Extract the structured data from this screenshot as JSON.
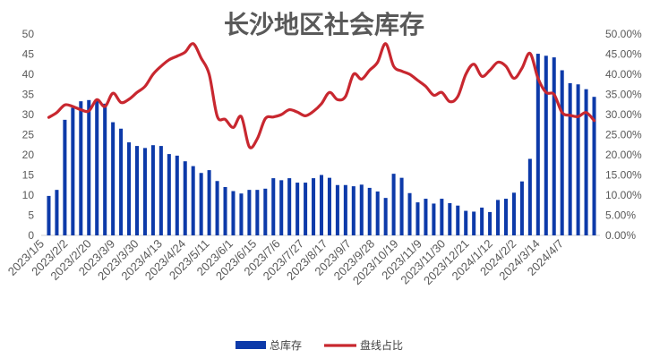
{
  "chart_data": {
    "type": "bar+line",
    "title": "长沙地区社会库存",
    "left_axis": {
      "min": 0,
      "max": 50,
      "step": 5
    },
    "right_axis": {
      "min": 0,
      "max": 50,
      "step": 5,
      "format": "percent-2dp"
    },
    "x_tick_labels": [
      "2023/1/5",
      "2023/2/2",
      "2023/2/20",
      "2023/3/9",
      "2023/3/30",
      "2023/4/13",
      "2023/4/24",
      "2023/5/11",
      "2023/6/1",
      "2023/6/15",
      "2023/7/6",
      "2023/7/27",
      "2023/8/17",
      "2023/9/7",
      "2023/9/28",
      "2023/10/19",
      "2023/11/9",
      "2023/11/30",
      "2023/12/21",
      "2024/1/12",
      "2024/2/2",
      "2024/3/14",
      "2024/4/7"
    ],
    "series": [
      {
        "name": "总库存",
        "type": "bar",
        "color": "#0d3aa9",
        "values": [
          9.8,
          11.3,
          28.7,
          31.7,
          33.3,
          33.6,
          33.8,
          32.7,
          28.1,
          26.5,
          23.1,
          22.2,
          21.7,
          22.4,
          22.2,
          20.2,
          19.8,
          18.4,
          17.2,
          15.5,
          16.2,
          13.5,
          12.0,
          11.0,
          10.4,
          11.3,
          11.3,
          11.6,
          14.2,
          13.7,
          14.2,
          13.1,
          13.1,
          14.2,
          15.0,
          14.3,
          12.5,
          12.5,
          12.2,
          12.6,
          11.8,
          10.9,
          9.3,
          15.3,
          14.3,
          10.5,
          8.2,
          9.1,
          7.9,
          9.1,
          8.0,
          7.4,
          6.1,
          5.9,
          6.9,
          5.8,
          8.8,
          9.1,
          10.6,
          13.4,
          19.0,
          45.1,
          44.6,
          44.2,
          41.0,
          37.8,
          37.5,
          36.3,
          34.4
        ]
      },
      {
        "name": "盘线占比",
        "type": "line",
        "color": "#c8272f",
        "values": [
          29.3,
          30.5,
          32.4,
          32.0,
          31.2,
          30.9,
          33.7,
          32.0,
          35.3,
          33.0,
          33.8,
          35.5,
          37.0,
          40.0,
          42.0,
          43.6,
          44.5,
          45.5,
          47.6,
          44.0,
          40.0,
          29.6,
          28.8,
          26.8,
          29.5,
          22.0,
          24.0,
          29.0,
          29.4,
          30.0,
          31.2,
          30.6,
          29.7,
          30.8,
          32.7,
          35.5,
          33.7,
          34.5,
          40.0,
          38.8,
          41.0,
          43.0,
          47.6,
          42.0,
          40.8,
          40.0,
          38.5,
          37.0,
          34.8,
          35.5,
          33.2,
          34.5,
          40.0,
          42.5,
          39.5,
          41.0,
          43.0,
          42.0,
          39.0,
          41.5,
          45.2,
          39.0,
          35.5,
          35.0,
          30.5,
          29.8,
          29.5,
          30.5,
          28.5
        ]
      }
    ],
    "legend": {
      "position": "bottom"
    },
    "grid": false
  }
}
